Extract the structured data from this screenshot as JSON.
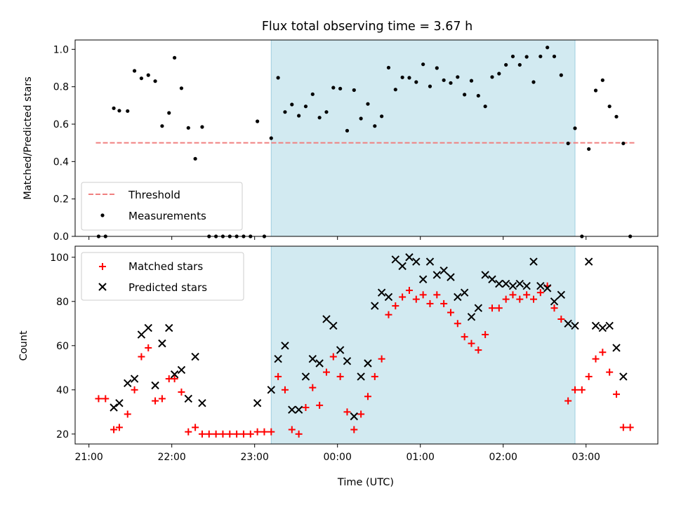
{
  "chart_data": [
    {
      "type": "scatter",
      "title": "Flux total observing time = 3.67 h",
      "xlabel": "",
      "ylabel": "Matched/Predicted stars",
      "xlim": [
        "20:50",
        "03:52"
      ],
      "ylim": [
        0,
        1.05
      ],
      "x_ticks": [
        "21:00",
        "22:00",
        "23:00",
        "00:00",
        "01:00",
        "02:00",
        "03:00"
      ],
      "y_ticks": [
        "0.0",
        "0.2",
        "0.4",
        "0.6",
        "0.8",
        "1.0"
      ],
      "shaded_interval": [
        "23:12",
        "02:52"
      ],
      "shade_color": "#add8e6",
      "threshold": {
        "name": "Threshold",
        "value": 0.5,
        "x_range": [
          "21:05",
          "03:35"
        ],
        "color": "#f08080"
      },
      "legend": {
        "position": "lower-left",
        "entries": [
          "Threshold",
          "Measurements"
        ]
      },
      "series": [
        {
          "name": "Measurements",
          "marker": "dot",
          "color": "#000000",
          "points": [
            [
              "21:07",
              0.0
            ],
            [
              "21:12",
              0.0
            ],
            [
              "21:18",
              0.685
            ],
            [
              "21:22",
              0.672
            ],
            [
              "21:28",
              0.67
            ],
            [
              "21:33",
              0.885
            ],
            [
              "21:38",
              0.845
            ],
            [
              "21:43",
              0.862
            ],
            [
              "21:48",
              0.83
            ],
            [
              "21:53",
              0.59
            ],
            [
              "21:58",
              0.66
            ],
            [
              "22:02",
              0.955
            ],
            [
              "22:07",
              0.792
            ],
            [
              "22:12",
              0.58
            ],
            [
              "22:17",
              0.415
            ],
            [
              "22:22",
              0.585
            ],
            [
              "22:27",
              0.0
            ],
            [
              "22:32",
              0.0
            ],
            [
              "22:37",
              0.0
            ],
            [
              "22:42",
              0.0
            ],
            [
              "22:47",
              0.0
            ],
            [
              "22:52",
              0.0
            ],
            [
              "22:57",
              0.0
            ],
            [
              "23:02",
              0.615
            ],
            [
              "23:07",
              0.0
            ],
            [
              "23:12",
              0.525
            ],
            [
              "23:17",
              0.848
            ],
            [
              "23:22",
              0.665
            ],
            [
              "23:27",
              0.705
            ],
            [
              "23:32",
              0.645
            ],
            [
              "23:37",
              0.695
            ],
            [
              "23:42",
              0.76
            ],
            [
              "23:47",
              0.635
            ],
            [
              "23:52",
              0.665
            ],
            [
              "23:57",
              0.795
            ],
            [
              "00:02",
              0.79
            ],
            [
              "00:07",
              0.565
            ],
            [
              "00:12",
              0.782
            ],
            [
              "00:17",
              0.63
            ],
            [
              "00:22",
              0.708
            ],
            [
              "00:27",
              0.59
            ],
            [
              "00:32",
              0.642
            ],
            [
              "00:37",
              0.902
            ],
            [
              "00:42",
              0.785
            ],
            [
              "00:47",
              0.85
            ],
            [
              "00:52",
              0.848
            ],
            [
              "00:57",
              0.825
            ],
            [
              "01:02",
              0.92
            ],
            [
              "01:07",
              0.802
            ],
            [
              "01:12",
              0.9
            ],
            [
              "01:17",
              0.835
            ],
            [
              "01:22",
              0.82
            ],
            [
              "01:27",
              0.852
            ],
            [
              "01:32",
              0.758
            ],
            [
              "01:37",
              0.832
            ],
            [
              "01:42",
              0.752
            ],
            [
              "01:47",
              0.695
            ],
            [
              "01:52",
              0.852
            ],
            [
              "01:57",
              0.87
            ],
            [
              "02:02",
              0.917
            ],
            [
              "02:07",
              0.962
            ],
            [
              "02:12",
              0.917
            ],
            [
              "02:17",
              0.96
            ],
            [
              "02:22",
              0.825
            ],
            [
              "02:27",
              0.962
            ],
            [
              "02:32",
              1.01
            ],
            [
              "02:37",
              0.962
            ],
            [
              "02:42",
              0.862
            ],
            [
              "02:47",
              0.497
            ],
            [
              "02:52",
              0.578
            ],
            [
              "02:57",
              0.0
            ],
            [
              "03:02",
              0.467
            ],
            [
              "03:07",
              0.78
            ],
            [
              "03:12",
              0.835
            ],
            [
              "03:17",
              0.695
            ],
            [
              "03:22",
              0.64
            ],
            [
              "03:27",
              0.497
            ],
            [
              "03:32",
              0.0
            ]
          ]
        }
      ]
    },
    {
      "type": "scatter",
      "title": "",
      "xlabel": "Time (UTC)",
      "ylabel": "Count",
      "xlim": [
        "20:50",
        "03:52"
      ],
      "ylim": [
        15.5,
        105
      ],
      "x_ticks": [
        "21:00",
        "22:00",
        "23:00",
        "00:00",
        "01:00",
        "02:00",
        "03:00"
      ],
      "y_ticks": [
        "20",
        "40",
        "60",
        "80",
        "100"
      ],
      "shaded_interval": [
        "23:12",
        "02:52"
      ],
      "shade_color": "#add8e6",
      "legend": {
        "position": "upper-left",
        "entries": [
          "Matched stars",
          "Predicted stars"
        ]
      },
      "series": [
        {
          "name": "Matched stars",
          "marker": "plus",
          "color": "#ff0000",
          "points": [
            [
              "21:07",
              36
            ],
            [
              "21:12",
              36
            ],
            [
              "21:18",
              22
            ],
            [
              "21:22",
              23
            ],
            [
              "21:28",
              29
            ],
            [
              "21:33",
              40
            ],
            [
              "21:38",
              55
            ],
            [
              "21:43",
              59
            ],
            [
              "21:48",
              35
            ],
            [
              "21:53",
              36
            ],
            [
              "21:58",
              45
            ],
            [
              "22:02",
              45
            ],
            [
              "22:07",
              39
            ],
            [
              "22:12",
              21
            ],
            [
              "22:17",
              23
            ],
            [
              "22:22",
              20
            ],
            [
              "22:27",
              20
            ],
            [
              "22:32",
              20
            ],
            [
              "22:37",
              20
            ],
            [
              "22:42",
              20
            ],
            [
              "22:47",
              20
            ],
            [
              "22:52",
              20
            ],
            [
              "22:57",
              20
            ],
            [
              "23:02",
              21
            ],
            [
              "23:07",
              21
            ],
            [
              "23:12",
              21
            ],
            [
              "23:17",
              46
            ],
            [
              "23:22",
              40
            ],
            [
              "23:27",
              22
            ],
            [
              "23:32",
              20
            ],
            [
              "23:37",
              32
            ],
            [
              "23:42",
              41
            ],
            [
              "23:47",
              33
            ],
            [
              "23:52",
              48
            ],
            [
              "23:57",
              55
            ],
            [
              "00:02",
              46
            ],
            [
              "00:07",
              30
            ],
            [
              "00:12",
              22
            ],
            [
              "00:17",
              29
            ],
            [
              "00:22",
              37
            ],
            [
              "00:27",
              46
            ],
            [
              "00:32",
              54
            ],
            [
              "00:37",
              74
            ],
            [
              "00:42",
              78
            ],
            [
              "00:47",
              82
            ],
            [
              "00:52",
              85
            ],
            [
              "00:57",
              81
            ],
            [
              "01:02",
              83
            ],
            [
              "01:07",
              79
            ],
            [
              "01:12",
              83
            ],
            [
              "01:17",
              79
            ],
            [
              "01:22",
              75
            ],
            [
              "01:27",
              70
            ],
            [
              "01:32",
              64
            ],
            [
              "01:37",
              61
            ],
            [
              "01:42",
              58
            ],
            [
              "01:47",
              65
            ],
            [
              "01:52",
              77
            ],
            [
              "01:57",
              77
            ],
            [
              "02:02",
              81
            ],
            [
              "02:07",
              83
            ],
            [
              "02:12",
              81
            ],
            [
              "02:17",
              83
            ],
            [
              "02:22",
              81
            ],
            [
              "02:27",
              84
            ],
            [
              "02:32",
              87
            ],
            [
              "02:37",
              77
            ],
            [
              "02:42",
              72
            ],
            [
              "02:47",
              35
            ],
            [
              "02:52",
              40
            ],
            [
              "02:57",
              40
            ],
            [
              "03:02",
              46
            ],
            [
              "03:07",
              54
            ],
            [
              "03:12",
              57
            ],
            [
              "03:17",
              48
            ],
            [
              "03:22",
              38
            ],
            [
              "03:27",
              23
            ],
            [
              "03:32",
              23
            ]
          ]
        },
        {
          "name": "Predicted stars",
          "marker": "x",
          "color": "#000000",
          "points": [
            [
              "21:18",
              32
            ],
            [
              "21:22",
              34
            ],
            [
              "21:28",
              43
            ],
            [
              "21:33",
              45
            ],
            [
              "21:38",
              65
            ],
            [
              "21:43",
              68
            ],
            [
              "21:48",
              42
            ],
            [
              "21:53",
              61
            ],
            [
              "21:58",
              68
            ],
            [
              "22:02",
              47
            ],
            [
              "22:07",
              49
            ],
            [
              "22:12",
              36
            ],
            [
              "22:17",
              55
            ],
            [
              "22:22",
              34
            ],
            [
              "23:02",
              34
            ],
            [
              "23:12",
              40
            ],
            [
              "23:17",
              54
            ],
            [
              "23:22",
              60
            ],
            [
              "23:27",
              31
            ],
            [
              "23:32",
              31
            ],
            [
              "23:37",
              46
            ],
            [
              "23:42",
              54
            ],
            [
              "23:47",
              52
            ],
            [
              "23:52",
              72
            ],
            [
              "23:57",
              69
            ],
            [
              "00:02",
              58
            ],
            [
              "00:07",
              53
            ],
            [
              "00:12",
              28
            ],
            [
              "00:17",
              46
            ],
            [
              "00:22",
              52
            ],
            [
              "00:27",
              78
            ],
            [
              "00:32",
              84
            ],
            [
              "00:37",
              82
            ],
            [
              "00:42",
              99
            ],
            [
              "00:47",
              96
            ],
            [
              "00:52",
              100
            ],
            [
              "00:57",
              98
            ],
            [
              "01:02",
              90
            ],
            [
              "01:07",
              98
            ],
            [
              "01:12",
              92
            ],
            [
              "01:17",
              94
            ],
            [
              "01:22",
              91
            ],
            [
              "01:27",
              82
            ],
            [
              "01:32",
              84
            ],
            [
              "01:37",
              73
            ],
            [
              "01:42",
              77
            ],
            [
              "01:47",
              92
            ],
            [
              "01:52",
              90
            ],
            [
              "01:57",
              88
            ],
            [
              "02:02",
              88
            ],
            [
              "02:07",
              87
            ],
            [
              "02:12",
              88
            ],
            [
              "02:17",
              87
            ],
            [
              "02:22",
              98
            ],
            [
              "02:27",
              87
            ],
            [
              "02:32",
              86
            ],
            [
              "02:37",
              80
            ],
            [
              "02:42",
              83
            ],
            [
              "02:47",
              70
            ],
            [
              "02:52",
              69
            ],
            [
              "03:02",
              98
            ],
            [
              "03:07",
              69
            ],
            [
              "03:12",
              68
            ],
            [
              "03:17",
              69
            ],
            [
              "03:22",
              59
            ],
            [
              "03:27",
              46
            ]
          ]
        }
      ]
    }
  ]
}
